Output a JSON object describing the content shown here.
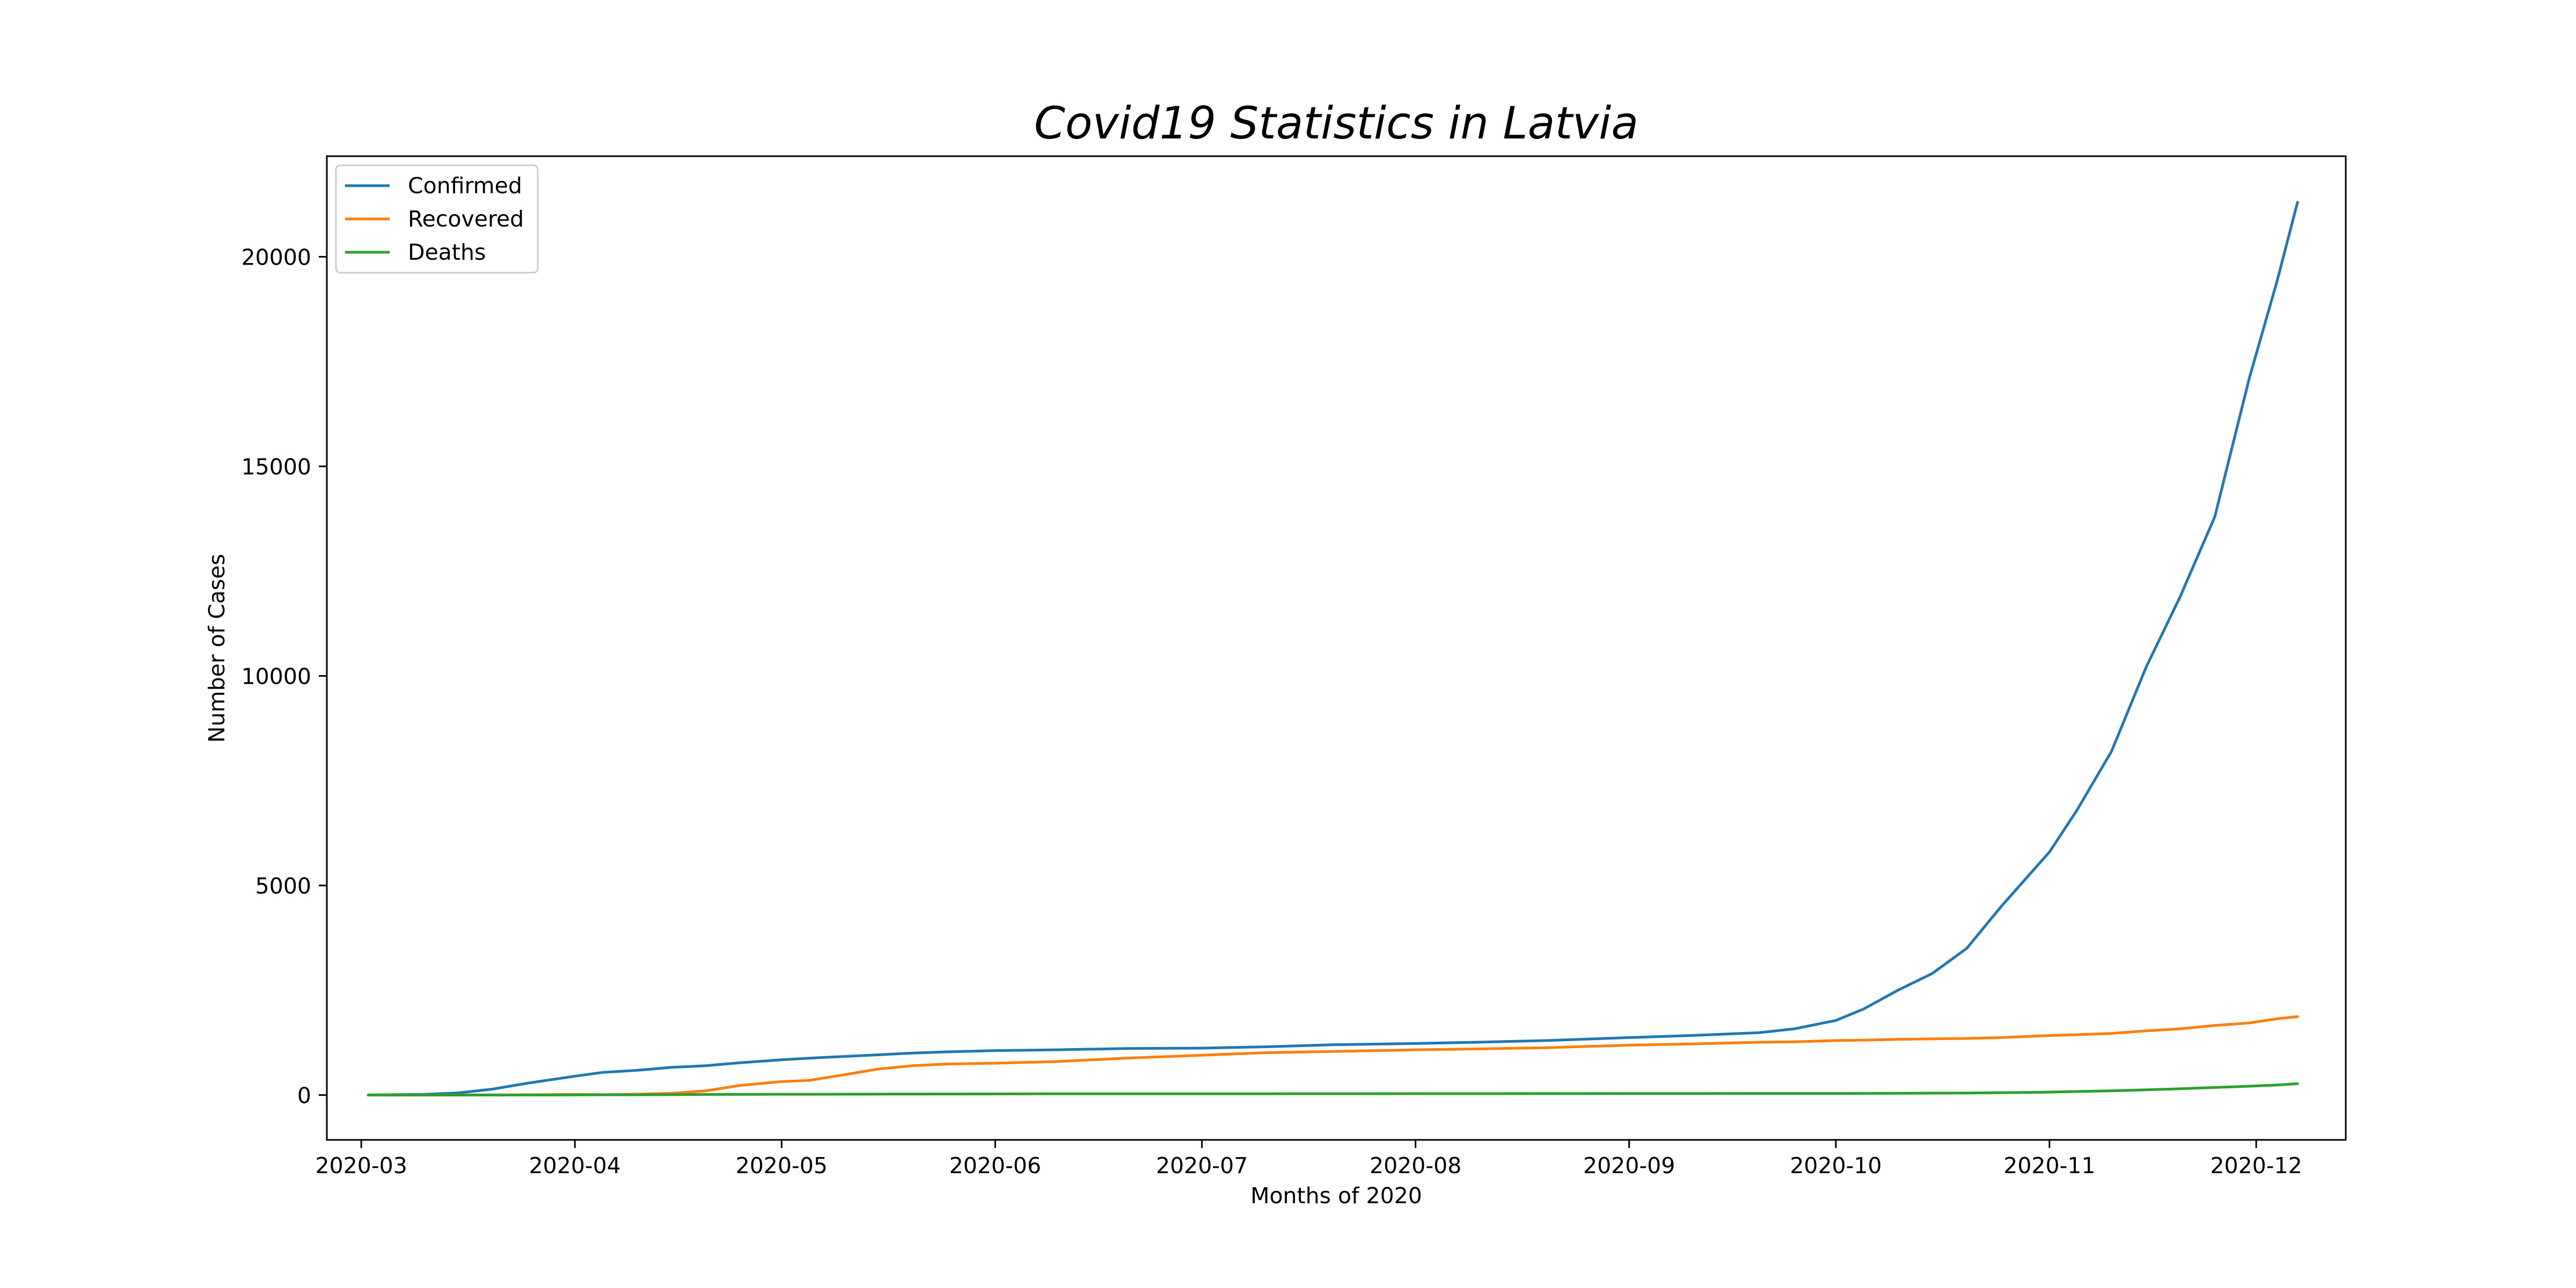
{
  "chart_data": {
    "type": "line",
    "title": "Covid19 Statistics in Latvia",
    "xlabel": "Months of 2020",
    "ylabel": "Number of Cases",
    "x_ticks": [
      "2020-03",
      "2020-04",
      "2020-05",
      "2020-06",
      "2020-07",
      "2020-08",
      "2020-09",
      "2020-10",
      "2020-11",
      "2020-12"
    ],
    "xlim": [
      "2020-02-25",
      "2020-12-14"
    ],
    "ylim": [
      -1070,
      22400
    ],
    "y_ticks": [
      0,
      5000,
      10000,
      15000,
      20000
    ],
    "grid": false,
    "legend_position": "top-left",
    "x": [
      "2020-03-02",
      "2020-03-10",
      "2020-03-15",
      "2020-03-20",
      "2020-03-25",
      "2020-04-01",
      "2020-04-05",
      "2020-04-10",
      "2020-04-15",
      "2020-04-20",
      "2020-04-25",
      "2020-05-01",
      "2020-05-05",
      "2020-05-10",
      "2020-05-15",
      "2020-05-20",
      "2020-05-25",
      "2020-06-01",
      "2020-06-10",
      "2020-06-20",
      "2020-07-01",
      "2020-07-10",
      "2020-07-20",
      "2020-08-01",
      "2020-08-10",
      "2020-08-20",
      "2020-09-01",
      "2020-09-10",
      "2020-09-20",
      "2020-09-25",
      "2020-10-01",
      "2020-10-05",
      "2020-10-10",
      "2020-10-15",
      "2020-10-20",
      "2020-10-25",
      "2020-11-01",
      "2020-11-05",
      "2020-11-10",
      "2020-11-15",
      "2020-11-20",
      "2020-11-25",
      "2020-11-30",
      "2020-12-04",
      "2020-12-07"
    ],
    "series": [
      {
        "name": "Confirmed",
        "color": "#1f77b4",
        "values": [
          0,
          16,
          50,
          140,
          280,
          450,
          540,
          590,
          660,
          700,
          770,
          840,
          880,
          920,
          960,
          1000,
          1030,
          1060,
          1080,
          1110,
          1120,
          1150,
          1200,
          1230,
          1260,
          1300,
          1370,
          1420,
          1490,
          1580,
          1780,
          2050,
          2500,
          2900,
          3500,
          4500,
          5800,
          6800,
          8200,
          10200,
          11900,
          13800,
          17100,
          19400,
          21300
        ]
      },
      {
        "name": "Recovered",
        "color": "#ff7f0e",
        "values": [
          0,
          1,
          1,
          3,
          6,
          15,
          10,
          20,
          40,
          100,
          230,
          320,
          350,
          480,
          620,
          700,
          740,
          760,
          800,
          880,
          950,
          1010,
          1040,
          1080,
          1100,
          1130,
          1190,
          1220,
          1260,
          1270,
          1300,
          1310,
          1330,
          1340,
          1350,
          1370,
          1420,
          1440,
          1470,
          1530,
          1580,
          1660,
          1720,
          1820,
          1870
        ]
      },
      {
        "name": "Deaths",
        "color": "#2ca02c",
        "values": [
          0,
          0,
          0,
          0,
          0,
          3,
          5,
          5,
          10,
          13,
          15,
          18,
          18,
          20,
          22,
          24,
          25,
          26,
          30,
          30,
          30,
          30,
          31,
          32,
          33,
          34,
          36,
          36,
          37,
          37,
          38,
          39,
          40,
          45,
          48,
          55,
          70,
          85,
          100,
          125,
          150,
          180,
          210,
          240,
          270
        ]
      }
    ]
  }
}
